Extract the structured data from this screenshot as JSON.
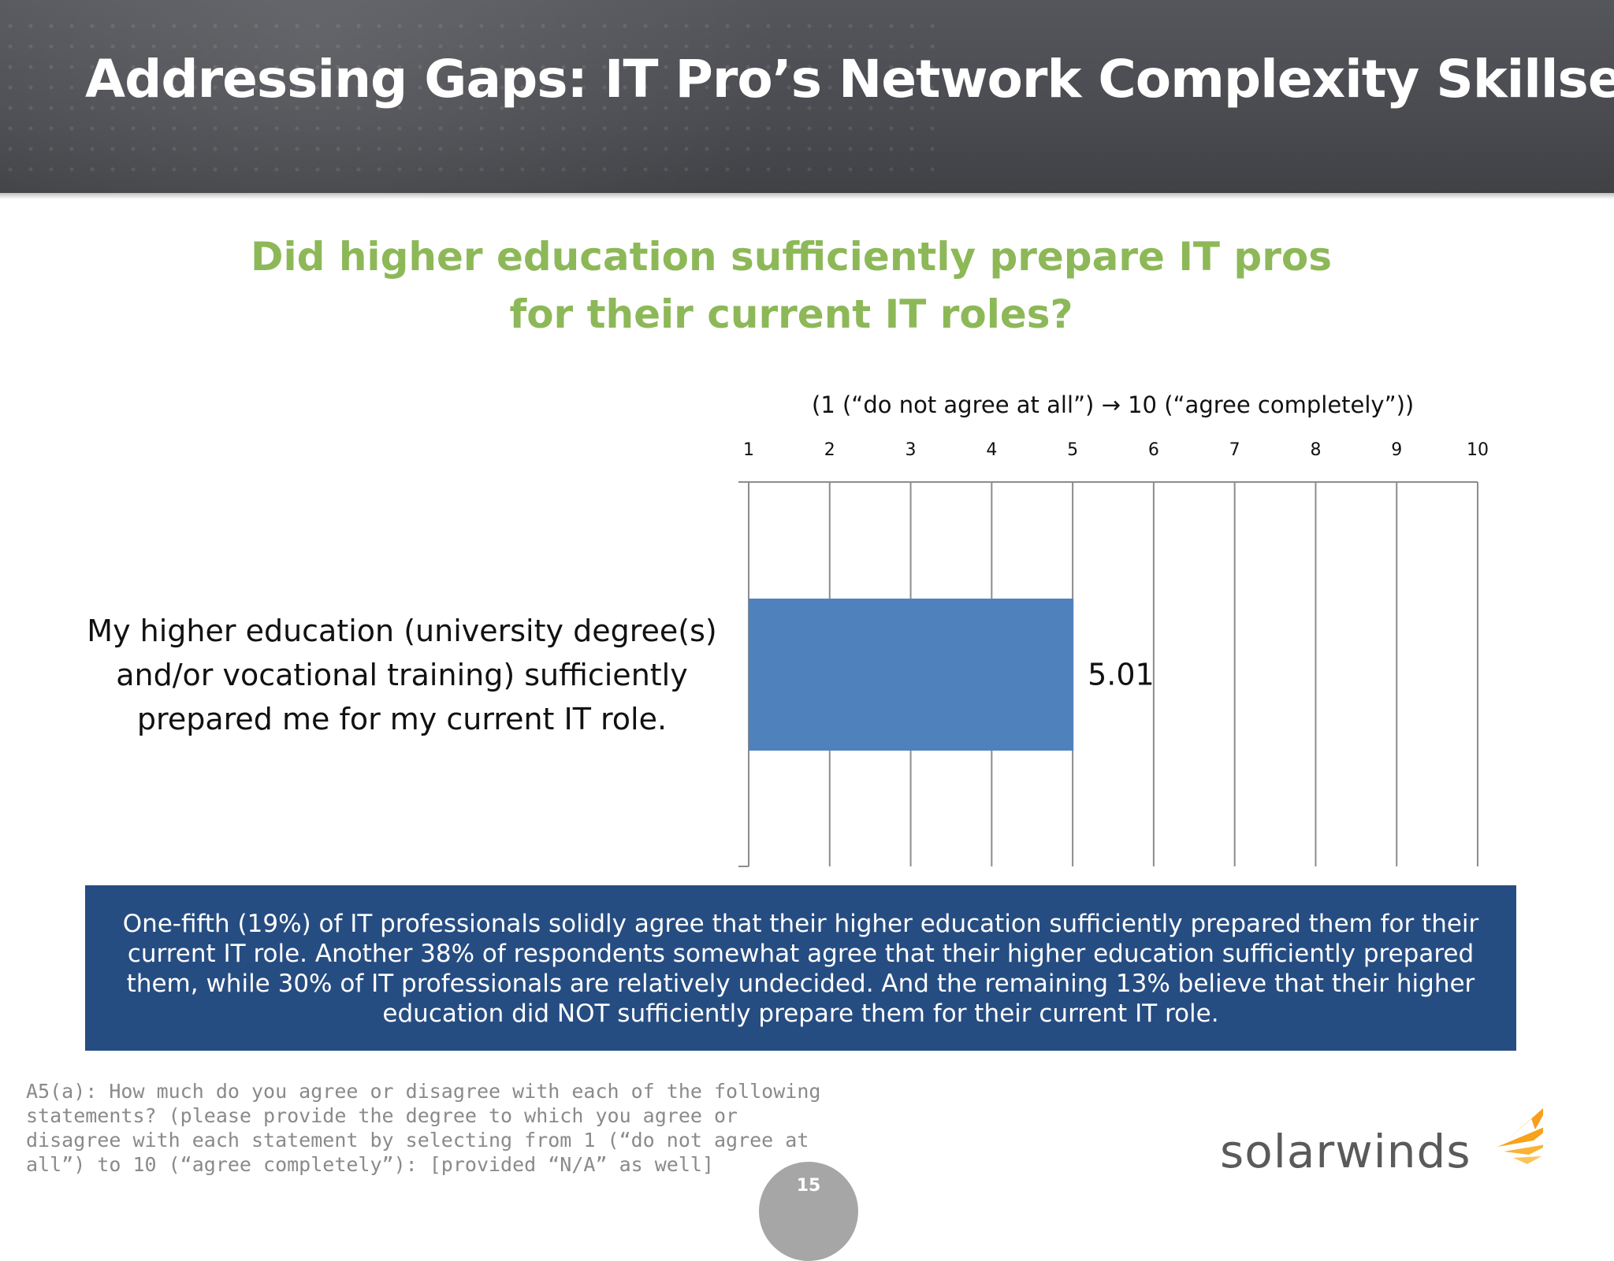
{
  "header": {
    "title": "Addressing Gaps: IT Pro’s Network Complexity Skillset"
  },
  "question": {
    "line1": "Did higher education sufficiently prepare IT pros",
    "line2": "for their current IT roles?"
  },
  "scale_note": "(1 (“do not agree at all”)  →  10 (“agree completely”))",
  "chart_data": {
    "type": "bar",
    "orientation": "horizontal",
    "categories": [
      "My higher education (university degree(s) and/or vocational training) sufficiently prepared me for my current IT role."
    ],
    "values": [
      5.01
    ],
    "data_labels": [
      "5.01"
    ],
    "xlim": [
      1,
      10
    ],
    "x_ticks": [
      "1",
      "2",
      "3",
      "4",
      "5",
      "6",
      "7",
      "8",
      "9",
      "10"
    ],
    "grid": "vertical",
    "bar_color": "#4f81bd"
  },
  "statement": {
    "line1": "My higher education (university degree(s)",
    "line2": "and/or vocational training) sufficiently",
    "line3": "prepared me for my current IT role."
  },
  "summary": "One-fifth (19%) of IT professionals solidly agree that their higher education sufficiently prepared them for their current IT role. Another 38% of respondents somewhat agree that their higher education sufficiently prepared them, while 30% of IT professionals are relatively undecided. And the remaining 13% believe that their higher education did NOT sufficiently prepare them for their current IT role.",
  "footnote": "A5(a): How much do you agree or disagree with each of the following statements? (please provide the degree to which you agree or disagree with each statement by selecting from 1 (“do not agree at all”) to 10 (“agree completely”): [provided “N/A” as well]",
  "logo": {
    "text": "solarwinds",
    "accent_color": "#f99d1c"
  },
  "page_number": "15"
}
